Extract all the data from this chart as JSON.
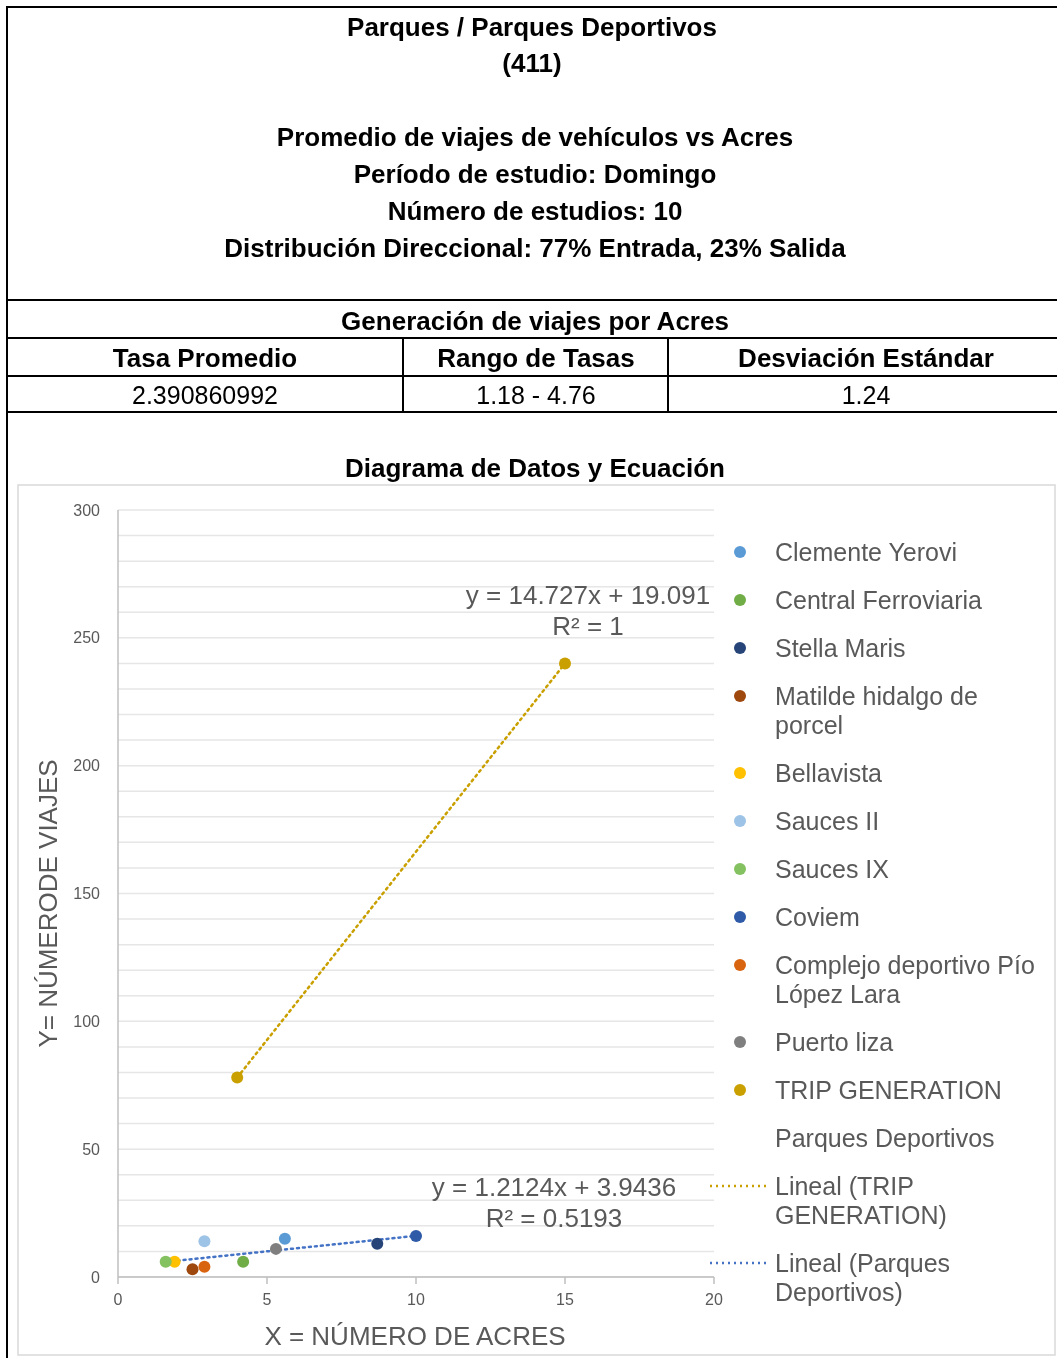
{
  "chart_data": {
    "type": "scatter",
    "title": "Diagrama de Datos y Ecuación",
    "xlabel": "X = NÚMERO DE ACRES",
    "ylabel": "Y= NÚMERODE VIAJES",
    "annotations": [
      "Parques  / Parques Deportivos",
      "(411)",
      "Promedio de viajes de vehículos  vs  Acres",
      "Período de estudio: Domingo",
      "Número de estudios: 10",
      "Distribución Direccional: 77% Entrada, 23% Salida",
      "Generación de viajes por Acres",
      "Tasa Promedio",
      "Rango de Tasas",
      "Desviación Estándar",
      "2.390860992",
      "1.18 - 4.76",
      "1.24",
      "y = 14.727x + 19.091",
      "R² = 1",
      "y = 1.2124x + 3.9436",
      "R² = 0.5193"
    ],
    "xlim": [
      0,
      20
    ],
    "xticks": [
      0,
      5,
      10,
      15,
      20
    ],
    "ylim": [
      0,
      300
    ],
    "yticks": [
      0,
      {
        "value": 10,
        "label": null
      },
      {
        "value": 20,
        "label": null
      },
      {
        "value": 30,
        "label": null
      },
      {
        "value": 40,
        "label": null
      },
      50,
      {
        "value": 60,
        "label": null
      },
      {
        "value": 70,
        "label": null
      },
      {
        "value": 80,
        "label": null
      },
      {
        "value": 90,
        "label": null
      },
      100,
      {
        "value": 110,
        "label": null
      },
      {
        "value": 120,
        "label": null
      },
      {
        "value": 130,
        "label": null
      },
      {
        "value": 140,
        "label": null
      },
      150,
      {
        "value": 160,
        "label": null
      },
      {
        "value": 170,
        "label": null
      },
      {
        "value": 180,
        "label": null
      },
      {
        "value": 190,
        "label": null
      },
      200,
      {
        "value": 210,
        "label": null
      },
      {
        "value": 220,
        "label": null
      },
      {
        "value": 230,
        "label": null
      },
      {
        "value": 240,
        "label": null
      },
      250,
      {
        "value": 260,
        "label": null
      },
      {
        "value": 270,
        "label": null
      },
      {
        "value": 280,
        "label": null
      },
      {
        "value": 290,
        "label": null
      },
      300
    ],
    "grid": "y",
    "legend": "right",
    "marker": "circle",
    "series": [
      {
        "name": "Clemente Yerovi",
        "color": "#5b9bd5",
        "x": [
          5.6
        ],
        "values": [
          15
        ]
      },
      {
        "name": "Central Ferroviaria",
        "color": "#70ad47",
        "x": [
          4.2
        ],
        "values": [
          6
        ]
      },
      {
        "name": "Stella Maris",
        "color": "#264478",
        "x": [
          8.7
        ],
        "values": [
          13
        ]
      },
      {
        "name": "Matilde hidalgo de porcel",
        "color": "#9e480e",
        "x": [
          2.5
        ],
        "values": [
          3
        ]
      },
      {
        "name": "Bellavista",
        "color": "#ffc000",
        "x": [
          1.9
        ],
        "values": [
          6
        ]
      },
      {
        "name": "Sauces II",
        "color": "#9dc3e6",
        "x": [
          2.9
        ],
        "values": [
          14
        ]
      },
      {
        "name": "Sauces IX",
        "color": "#84c160",
        "x": [
          1.6
        ],
        "values": [
          6
        ]
      },
      {
        "name": "Coviem",
        "color": "#2e5aa8",
        "x": [
          10
        ],
        "values": [
          16
        ]
      },
      {
        "name": "Complejo deportivo Pío López Lara",
        "color": "#d9640f",
        "x": [
          2.9
        ],
        "values": [
          4
        ]
      },
      {
        "name": "Puerto liza",
        "color": "#7f7f7f",
        "x": [
          5.3
        ],
        "values": [
          11
        ]
      },
      {
        "name": "TRIP GENERATION",
        "color": "#c9a000",
        "x": [
          4,
          15
        ],
        "values": [
          78,
          240
        ]
      },
      {
        "name": "Parques Deportivos"
      },
      {
        "name": "Lineal (TRIP GENERATION)",
        "type": "line",
        "line_style": "dotted",
        "marker": "none",
        "color": "#c9a000",
        "x": [
          4,
          15
        ],
        "values": [
          78,
          240
        ]
      },
      {
        "name": "Lineal (Parques Deportivos)",
        "type": "line",
        "line_style": "dotted",
        "marker": "none",
        "color": "#4472c4",
        "x": [
          1.6,
          10
        ],
        "values": [
          5.9,
          16.1
        ]
      }
    ]
  }
}
